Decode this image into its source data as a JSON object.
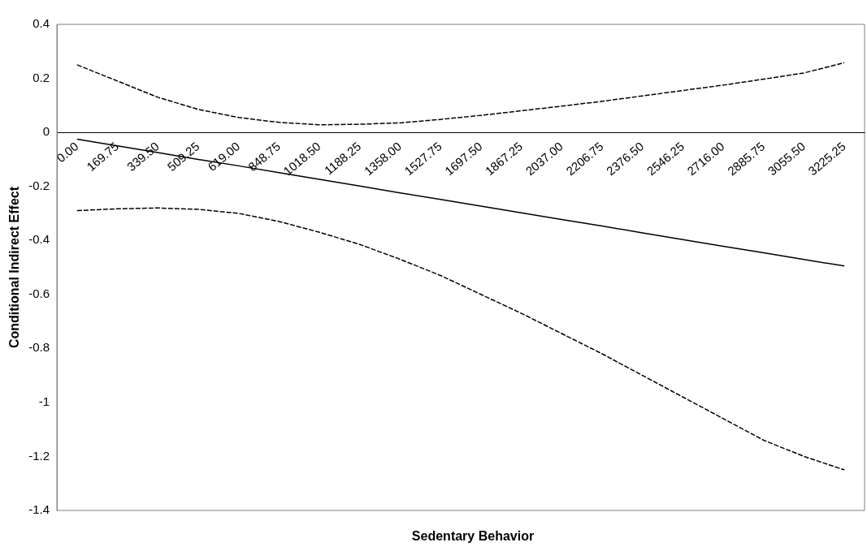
{
  "chart_data": {
    "type": "line",
    "xlabel": "Sedentary Behavior",
    "ylabel": "Conditional Indirect Effect",
    "categories": [
      "0.00",
      "169.75",
      "339.50",
      "509.25",
      "619.00",
      "848.75",
      "1018.50",
      "1188.25",
      "1358.00",
      "1527.75",
      "1697.50",
      "1867.25",
      "2037.00",
      "2206.75",
      "2376.50",
      "2546.25",
      "2716.00",
      "2885.75",
      "3055.50",
      "3225.25"
    ],
    "series": [
      {
        "color": "#000000",
        "line_style": "solid",
        "values": [
          -0.025,
          -0.05,
          -0.075,
          -0.1,
          -0.124,
          -0.149,
          -0.174,
          -0.199,
          -0.224,
          -0.248,
          -0.273,
          -0.298,
          -0.323,
          -0.347,
          -0.372,
          -0.397,
          -0.422,
          -0.446,
          -0.471,
          -0.495
        ]
      },
      {
        "color": "#000000",
        "line_style": "dashed",
        "values": [
          0.25,
          0.19,
          0.13,
          0.085,
          0.055,
          0.037,
          0.028,
          0.03,
          0.035,
          0.048,
          0.063,
          0.08,
          0.097,
          0.115,
          0.135,
          0.155,
          0.175,
          0.197,
          0.22,
          0.258
        ]
      },
      {
        "color": "#000000",
        "line_style": "dashed",
        "values": [
          -0.29,
          -0.283,
          -0.28,
          -0.285,
          -0.3,
          -0.33,
          -0.37,
          -0.415,
          -0.47,
          -0.53,
          -0.6,
          -0.67,
          -0.745,
          -0.82,
          -0.9,
          -0.98,
          -1.06,
          -1.14,
          -1.2,
          -1.25
        ]
      }
    ],
    "ylim": [
      -1.4,
      0.4
    ],
    "yticks": [
      -1.4,
      -1.2,
      -1,
      -0.8,
      -0.6,
      -0.4,
      -0.2,
      0,
      0.2,
      0.4
    ],
    "grid": false,
    "legend": false,
    "marker": "none"
  }
}
